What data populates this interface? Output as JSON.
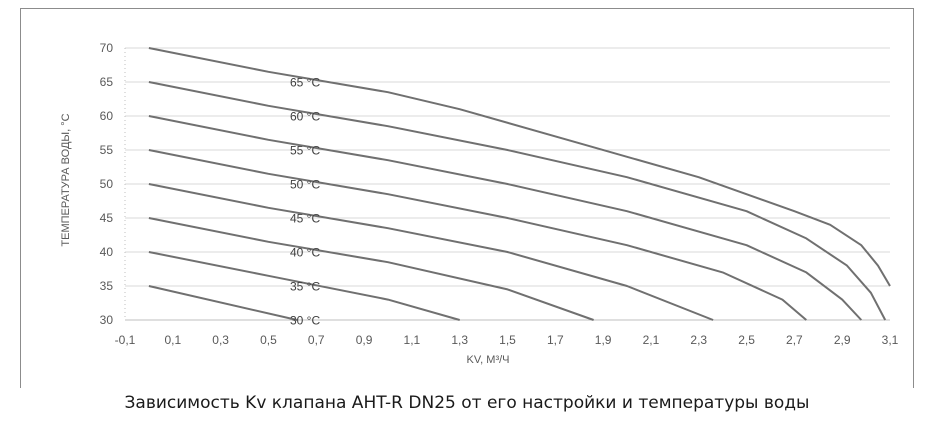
{
  "chart_data": {
    "type": "line",
    "title": "Зависимость Kv клапана AHT-R DN25 от его настройки и температуры воды",
    "xlabel": "KV, М³/Ч",
    "ylabel": "ТЕМПЕРАТУРА ВОДЫ, °С",
    "xlim": [
      -0.1,
      3.1
    ],
    "ylim": [
      30,
      70
    ],
    "x_ticks": [
      "-0,1",
      "0,1",
      "0,3",
      "0,5",
      "0,7",
      "0,9",
      "1,1",
      "1,3",
      "1,5",
      "1,7",
      "1,9",
      "2,1",
      "2,3",
      "2,5",
      "2,7",
      "2,9",
      "3,1"
    ],
    "y_ticks": [
      "30",
      "35",
      "40",
      "45",
      "50",
      "55",
      "60",
      "65",
      "70"
    ],
    "grid": "horizontal",
    "line_color": "#707070",
    "series": [
      {
        "name": "30 °C",
        "points": [
          [
            0,
            35
          ],
          [
            0.62,
            30
          ]
        ]
      },
      {
        "name": "35 °C",
        "points": [
          [
            0,
            40
          ],
          [
            0.5,
            36.5
          ],
          [
            1.0,
            33
          ],
          [
            1.3,
            30
          ]
        ]
      },
      {
        "name": "40 °C",
        "points": [
          [
            0,
            45
          ],
          [
            0.5,
            41.5
          ],
          [
            1.0,
            38.5
          ],
          [
            1.5,
            34.5
          ],
          [
            1.86,
            30
          ]
        ]
      },
      {
        "name": "45 °C",
        "points": [
          [
            0,
            50
          ],
          [
            0.5,
            46.5
          ],
          [
            1.0,
            43.5
          ],
          [
            1.5,
            40
          ],
          [
            2.0,
            35
          ],
          [
            2.36,
            30
          ]
        ]
      },
      {
        "name": "50 °C",
        "points": [
          [
            0,
            55
          ],
          [
            0.5,
            51.5
          ],
          [
            1.0,
            48.5
          ],
          [
            1.5,
            45
          ],
          [
            2.0,
            41
          ],
          [
            2.4,
            37
          ],
          [
            2.65,
            33
          ],
          [
            2.75,
            30
          ]
        ]
      },
      {
        "name": "55 °C",
        "points": [
          [
            0,
            60
          ],
          [
            0.5,
            56.5
          ],
          [
            1.0,
            53.5
          ],
          [
            1.5,
            50
          ],
          [
            2.0,
            46
          ],
          [
            2.5,
            41
          ],
          [
            2.75,
            37
          ],
          [
            2.9,
            33
          ],
          [
            2.98,
            30
          ]
        ]
      },
      {
        "name": "60 °C",
        "points": [
          [
            0,
            65
          ],
          [
            0.5,
            61.5
          ],
          [
            1.0,
            58.5
          ],
          [
            1.5,
            55
          ],
          [
            2.0,
            51
          ],
          [
            2.5,
            46
          ],
          [
            2.75,
            42
          ],
          [
            2.92,
            38
          ],
          [
            3.02,
            34
          ],
          [
            3.08,
            30
          ]
        ]
      },
      {
        "name": "65 °C",
        "points": [
          [
            0,
            70
          ],
          [
            0.5,
            66.5
          ],
          [
            1.0,
            63.5
          ],
          [
            1.3,
            61
          ],
          [
            1.8,
            56
          ],
          [
            2.3,
            51
          ],
          [
            2.7,
            46
          ],
          [
            2.85,
            44
          ],
          [
            2.98,
            41
          ],
          [
            3.05,
            38
          ],
          [
            3.1,
            35
          ]
        ]
      }
    ]
  }
}
